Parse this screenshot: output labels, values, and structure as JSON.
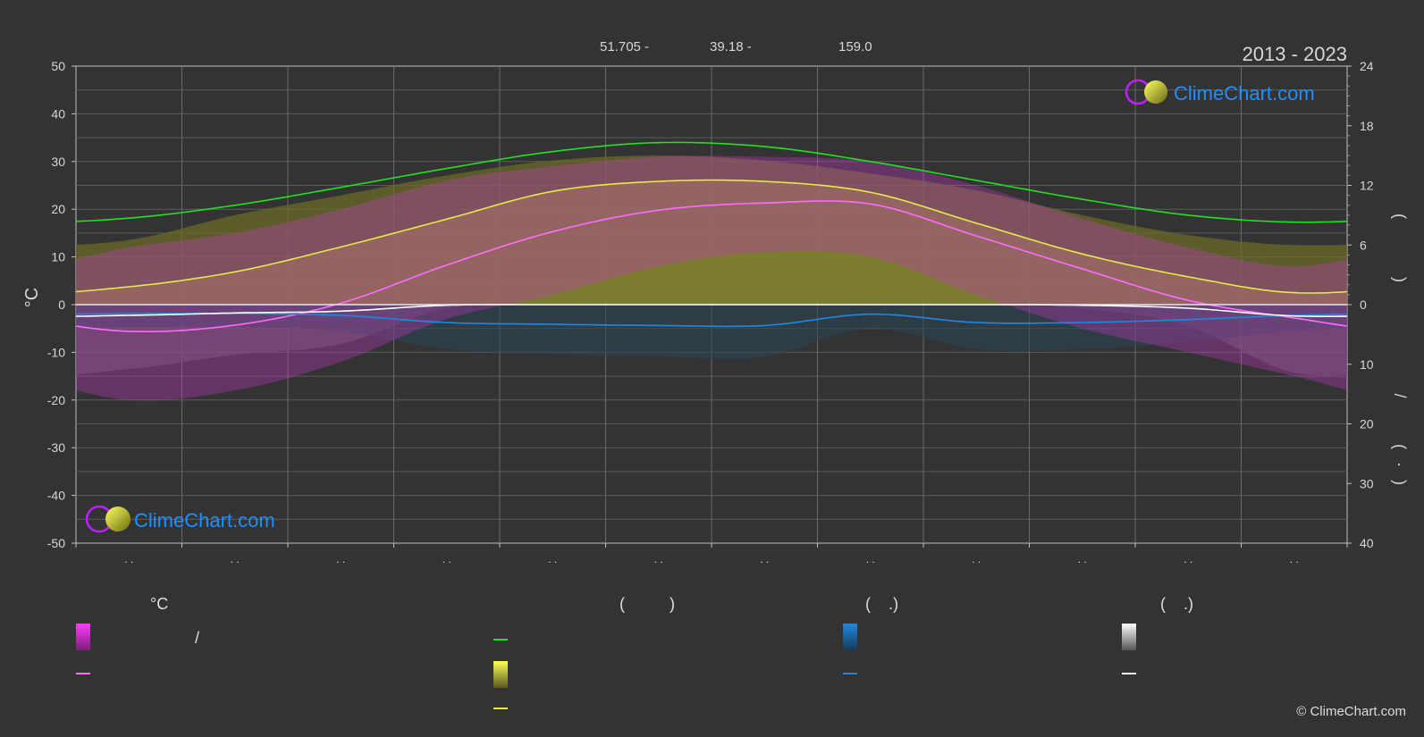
{
  "header": {
    "period": "2013 - 2023",
    "coords": [
      "51.705 -",
      "39.18 -",
      "159.0"
    ]
  },
  "logo": {
    "text": "ClimeChart.com"
  },
  "copyright": "© ClimeChart.com",
  "colors": {
    "background": "#333333",
    "daylight": "#22e022",
    "sunshine": "#e8e84a",
    "temp_mean": "#ff6bff",
    "temp_range": "#e030e0",
    "rain": "#1e88e5",
    "snow": "#ffffff",
    "logo_text": "#1e90ff"
  },
  "legend": {
    "temp_header": "°C",
    "temp_slash": "/",
    "sun_header": "(          )",
    "rain_header": "(    .)",
    "snow_header": "(    .)"
  },
  "chart_data": {
    "type": "line",
    "x": [
      1,
      2,
      3,
      4,
      5,
      6,
      7,
      8,
      9,
      10,
      11,
      12
    ],
    "categories": [
      ". .",
      ". .",
      ". .",
      ". .",
      ". .",
      ". .",
      ". .",
      ". .",
      ". .",
      ". .",
      ". .",
      ". ."
    ],
    "ylabel": "°C",
    "ylim": [
      -50,
      50
    ],
    "yticks": [
      50,
      40,
      30,
      20,
      10,
      0,
      -10,
      -20,
      -30,
      -40,
      -50
    ],
    "y2_top_ticks": [
      24,
      18,
      12,
      6,
      0
    ],
    "y2_bottom_ticks": [
      10,
      20,
      30,
      40
    ],
    "y2_upper_range_hours": [
      0,
      24
    ],
    "y2_lower_range_mm": [
      0,
      40
    ],
    "y2_label_glyphs": [
      "(",
      ")",
      "/",
      "(",
      "·",
      ")"
    ],
    "grid": true,
    "series": [
      {
        "key": "daylight_hours",
        "axis": "y2_upper",
        "values": [
          8.7,
          10.0,
          11.8,
          13.7,
          15.4,
          16.3,
          15.9,
          14.4,
          12.5,
          10.6,
          9.0,
          8.3
        ]
      },
      {
        "key": "sunshine_hours",
        "axis": "y2_upper",
        "values": [
          1.8,
          3.3,
          5.8,
          8.6,
          11.4,
          12.4,
          12.4,
          11.3,
          8.2,
          5.1,
          2.8,
          1.2
        ]
      },
      {
        "key": "sunshine_potential_hours",
        "axis": "y2_upper",
        "values": [
          6.5,
          9.0,
          11.0,
          13.0,
          14.5,
          15.0,
          14.5,
          13.2,
          11.5,
          9.0,
          7.0,
          6.0
        ]
      },
      {
        "key": "temp_mean_c",
        "axis": "y",
        "values": [
          -5.6,
          -4.3,
          0.3,
          8.3,
          15.3,
          19.8,
          21.3,
          21.1,
          14.4,
          7.5,
          0.9,
          -2.8
        ]
      },
      {
        "key": "temp_max_c",
        "axis": "y",
        "values": [
          12,
          15,
          20,
          26,
          29,
          31,
          31,
          30,
          25,
          18,
          12,
          8
        ]
      },
      {
        "key": "temp_min_c",
        "axis": "y",
        "values": [
          -20,
          -18,
          -12,
          -3,
          2,
          8,
          11,
          10,
          2,
          -5,
          -10,
          -15
        ]
      },
      {
        "key": "rain_mm_day",
        "axis": "y2_lower",
        "values": [
          1.5,
          1.5,
          1.8,
          3.0,
          3.3,
          3.5,
          3.5,
          1.6,
          3.0,
          3.0,
          2.5,
          1.8
        ]
      },
      {
        "key": "snow_mm_day",
        "axis": "y2_lower",
        "values": [
          1.8,
          1.4,
          1.1,
          0.1,
          0,
          0,
          0,
          0,
          0,
          0.1,
          0.6,
          1.9
        ]
      }
    ]
  }
}
